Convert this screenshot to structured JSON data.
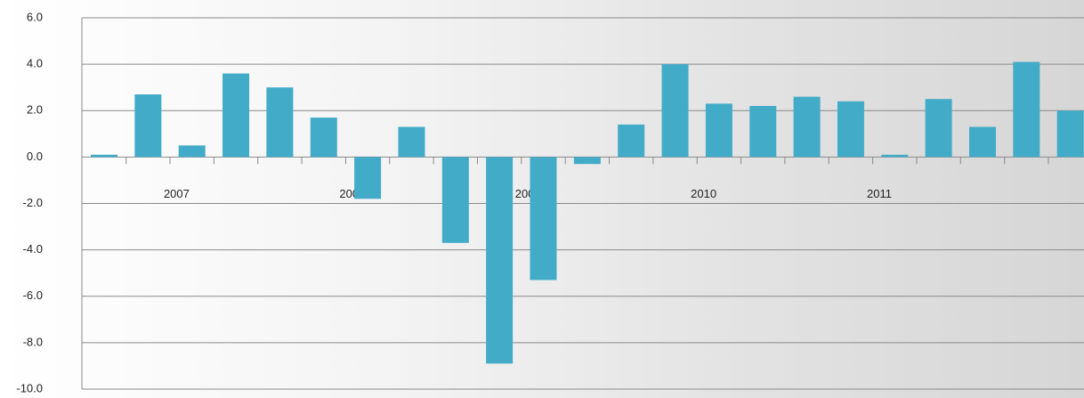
{
  "chart_data": {
    "type": "bar",
    "categories": [
      "2007",
      null,
      null,
      null,
      "2008",
      null,
      null,
      null,
      "2009",
      null,
      null,
      null,
      "2010",
      null,
      null,
      null,
      "2011",
      null,
      null,
      null,
      null,
      null,
      null
    ],
    "values": [
      0.1,
      2.7,
      0.5,
      3.6,
      3.0,
      1.7,
      -1.8,
      1.3,
      -3.7,
      -8.9,
      -5.3,
      -0.3,
      1.4,
      4.0,
      2.3,
      2.2,
      2.6,
      2.4,
      0.1,
      2.5,
      1.3,
      4.1,
      2.0
    ],
    "color": "#42abc8",
    "ylim": [
      -10,
      6
    ],
    "yticks": [
      {
        "value": -10,
        "label": "-10.0"
      },
      {
        "value": -8,
        "label": "-8.0"
      },
      {
        "value": -6,
        "label": "-6.0"
      },
      {
        "value": -4,
        "label": "-4.0"
      },
      {
        "value": -2,
        "label": "-2.0"
      },
      {
        "value": 0,
        "label": "0.0"
      },
      {
        "value": 2,
        "label": "2.0"
      },
      {
        "value": 4,
        "label": "4.0"
      },
      {
        "value": 6,
        "label": "6.0"
      }
    ],
    "grid": true
  }
}
